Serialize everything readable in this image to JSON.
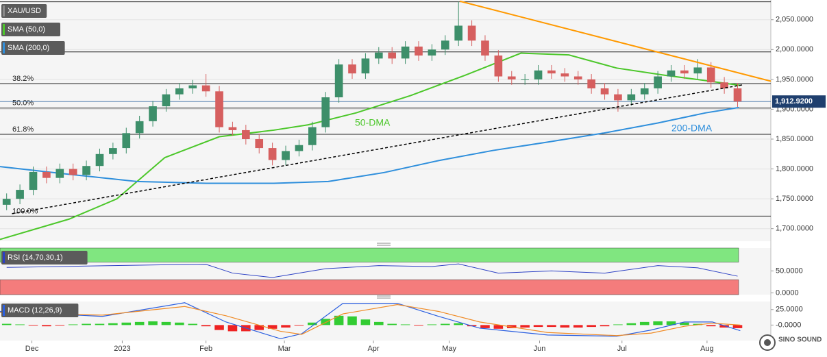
{
  "chart_data": [
    {
      "type": "candlestick",
      "name": "XAU/USD",
      "xlim": [
        -0.5,
        57.5
      ],
      "ylim": [
        1679,
        2083
      ],
      "yticks": [
        {
          "value": 1700,
          "label": "1,700.0000"
        },
        {
          "value": 1750,
          "label": "1,750.0000"
        },
        {
          "value": 1800,
          "label": "1,800.0000"
        },
        {
          "value": 1850,
          "label": "1,850.0000"
        },
        {
          "value": 1900,
          "label": "1,900.0000"
        },
        {
          "value": 1950,
          "label": "1,950.0000"
        },
        {
          "value": 2000,
          "label": "2,000.0000"
        },
        {
          "value": 2050,
          "label": "2,050.0000"
        }
      ],
      "open": [
        1740,
        1750,
        1765,
        1795,
        1785,
        1800,
        1790,
        1805,
        1825,
        1835,
        1860,
        1880,
        1905,
        1925,
        1935,
        1940,
        1930,
        1870,
        1865,
        1850,
        1835,
        1815,
        1830,
        1840,
        1870,
        1920,
        1975,
        1960,
        1985,
        1995,
        1985,
        2005,
        1990,
        2000,
        2015,
        2040,
        2015,
        1990,
        1955,
        1950,
        1950,
        1965,
        1960,
        1955,
        1950,
        1935,
        1925,
        1915,
        1925,
        1935,
        1955,
        1965,
        1960,
        1970,
        1945,
        1935
      ],
      "high": [
        1759,
        1774,
        1804,
        1804,
        1809,
        1809,
        1814,
        1834,
        1844,
        1869,
        1889,
        1914,
        1934,
        1944,
        1949,
        1959,
        1939,
        1879,
        1874,
        1859,
        1844,
        1839,
        1849,
        1879,
        1929,
        1984,
        1984,
        1994,
        2004,
        2004,
        2014,
        2014,
        2009,
        2024,
        2080,
        2049,
        2024,
        1999,
        1964,
        1959,
        1974,
        1974,
        1969,
        1964,
        1959,
        1944,
        1934,
        1934,
        1944,
        1964,
        1974,
        1974,
        1984,
        1979,
        1954,
        1944
      ],
      "low": [
        1731,
        1741,
        1756,
        1776,
        1776,
        1781,
        1781,
        1796,
        1816,
        1826,
        1851,
        1871,
        1896,
        1916,
        1926,
        1921,
        1861,
        1856,
        1841,
        1826,
        1806,
        1806,
        1821,
        1831,
        1861,
        1911,
        1951,
        1951,
        1976,
        1976,
        1976,
        1981,
        1981,
        1991,
        2006,
        2006,
        1981,
        1946,
        1941,
        1941,
        1941,
        1951,
        1946,
        1941,
        1926,
        1916,
        1896,
        1906,
        1916,
        1926,
        1946,
        1951,
        1951,
        1936,
        1926,
        1904
      ],
      "close": [
        1750,
        1765,
        1795,
        1785,
        1800,
        1790,
        1805,
        1825,
        1835,
        1860,
        1880,
        1905,
        1925,
        1935,
        1940,
        1930,
        1870,
        1865,
        1850,
        1835,
        1815,
        1830,
        1840,
        1870,
        1920,
        1975,
        1960,
        1985,
        1995,
        1985,
        2005,
        1990,
        2000,
        2015,
        2040,
        2015,
        1990,
        1955,
        1950,
        1950,
        1965,
        1960,
        1955,
        1950,
        1935,
        1925,
        1915,
        1925,
        1935,
        1955,
        1965,
        1960,
        1970,
        1945,
        1935,
        1913
      ],
      "up_color": "#3d8f6a",
      "down_color": "#d65f5f",
      "series": [
        {
          "name": "SMA (50,0)",
          "annotation": "50-DMA",
          "color": "#4cc72a",
          "x": [
            -0.5,
            4.7,
            8.3,
            11.9,
            16,
            20.1,
            22.7,
            26.3,
            30.4,
            34.5,
            38.7,
            42.3,
            45.9,
            49.5,
            52.6,
            55.2
          ],
          "values": [
            1682,
            1716,
            1750,
            1819,
            1854,
            1865,
            1874,
            1894,
            1923,
            1957,
            1994,
            1991,
            1969,
            1957,
            1948,
            1940
          ]
        },
        {
          "name": "SMA (200,0)",
          "annotation": "200-DMA",
          "color": "#2f8fdc",
          "x": [
            -0.5,
            4.7,
            9.8,
            15,
            20.1,
            24.2,
            28.4,
            32.5,
            36.6,
            40.7,
            44.9,
            49,
            52.6,
            55.1
          ],
          "values": [
            1804,
            1791,
            1779,
            1776,
            1776,
            1779,
            1794,
            1814,
            1831,
            1845,
            1860,
            1877,
            1894,
            1903
          ]
        }
      ],
      "fib_levels": [
        {
          "label": "38.2%",
          "value": 1943
        },
        {
          "label": "50.0%",
          "value": 1902
        },
        {
          "label": "61.8%",
          "value": 1858
        },
        {
          "label": "100.0%",
          "value": 1721
        }
      ],
      "hlines": [
        2080,
        1996
      ],
      "trendlines": [
        {
          "x": [
            34.1,
            57.5
          ],
          "values": [
            2081,
            1947
          ],
          "color": "#ff9900",
          "style": "solid"
        },
        {
          "x": [
            0.4,
            55.4
          ],
          "values": [
            1725,
            1941
          ],
          "color": "#000000",
          "style": "dashed"
        }
      ],
      "last_price": {
        "value": 1912.92,
        "label": "1,912.9200"
      },
      "grid": true
    },
    {
      "type": "rsi",
      "name": "RSI (14,70,30,1)",
      "xlim": [
        -0.5,
        57.5
      ],
      "ylim": [
        -4,
        102
      ],
      "yticks": [
        {
          "value": 50,
          "label": "50.0000"
        },
        {
          "value": 0,
          "label": "0.0000"
        }
      ],
      "overbought": 70,
      "oversold": 30,
      "zone_colors": [
        "#80e680",
        "#f47c7c"
      ],
      "series": [
        {
          "color": "#2b3fc4",
          "x": [
            0,
            4,
            8,
            12,
            15,
            17,
            20,
            24,
            28,
            32,
            34,
            37,
            41,
            45,
            49,
            52,
            55
          ],
          "values": [
            58,
            60,
            62,
            64,
            65,
            45,
            35,
            55,
            62,
            60,
            66,
            45,
            50,
            45,
            62,
            57,
            38
          ]
        }
      ]
    },
    {
      "type": "macd",
      "name": "MACD (12,26,9)",
      "xlim": [
        -0.5,
        57.5
      ],
      "ylim": [
        -25,
        38
      ],
      "yticks": [
        {
          "value": 25,
          "label": "25.0000"
        },
        {
          "value": 0,
          "label": "-0.0000"
        }
      ],
      "histogram": [
        2,
        1,
        -1,
        -2,
        -1,
        1,
        2,
        2,
        3,
        4,
        5,
        6,
        5,
        4,
        2,
        -2,
        -8,
        -10,
        -10,
        -8,
        -6,
        -4,
        -1,
        4,
        10,
        15,
        14,
        9,
        5,
        2,
        1,
        -1,
        1,
        2,
        3,
        -2,
        -5,
        -6,
        -5,
        -4,
        -3,
        -3,
        -4,
        -4,
        -3,
        -2,
        1,
        3,
        5,
        6,
        6,
        4,
        2,
        -2,
        -4,
        -5
      ],
      "hist_colors": [
        "#33cc33",
        "#ee2222"
      ],
      "series": [
        {
          "color": "#2b5fe0",
          "x": [
            -0.5,
            7.2,
            13.4,
            16.5,
            20.6,
            22.2,
            25.3,
            29.4,
            32.5,
            35.6,
            40.7,
            45.9,
            48.5,
            51,
            53.1,
            55.2
          ],
          "values": [
            22,
            14,
            36,
            5,
            -22,
            -14,
            35,
            35,
            14,
            -5,
            -16,
            -18,
            -8,
            5,
            5,
            -9
          ]
        },
        {
          "color": "#f08a24",
          "x": [
            -0.5,
            7.2,
            13.4,
            16.5,
            20.6,
            22.2,
            25.3,
            29.4,
            32.5,
            35.6,
            40.7,
            45.9,
            48.5,
            51,
            53.1,
            55.2
          ],
          "values": [
            20,
            16,
            30,
            15,
            -10,
            -15,
            18,
            33,
            22,
            5,
            -12,
            -17,
            -13,
            -2,
            3,
            0
          ]
        }
      ],
      "xticks": [
        {
          "value": 1.9,
          "label": "Dec"
        },
        {
          "value": 8.7,
          "label": "2023"
        },
        {
          "value": 15.0,
          "label": "Feb"
        },
        {
          "value": 20.9,
          "label": "Mar"
        },
        {
          "value": 27.6,
          "label": "Apr"
        },
        {
          "value": 33.3,
          "label": "May"
        },
        {
          "value": 40.1,
          "label": "Jun"
        },
        {
          "value": 46.3,
          "label": "Jul"
        },
        {
          "value": 52.7,
          "label": "Aug"
        }
      ]
    }
  ],
  "watermark": "SINO SOUND"
}
